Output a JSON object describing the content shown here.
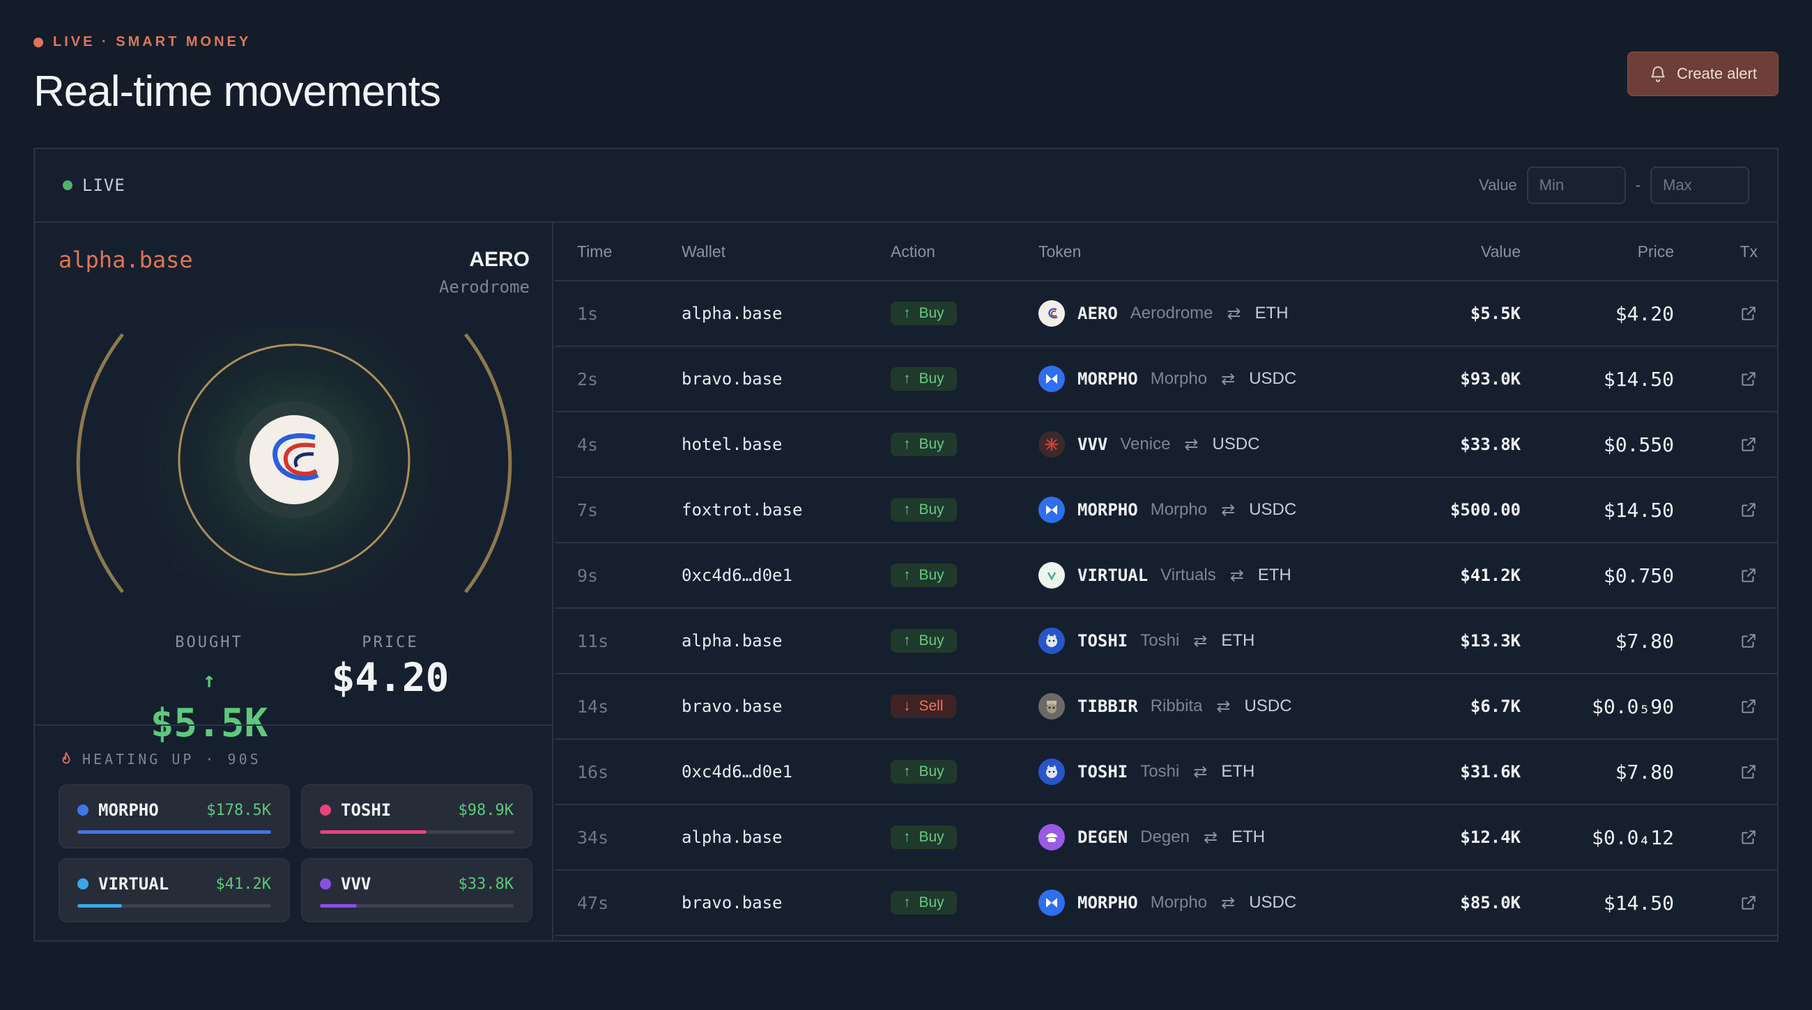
{
  "header": {
    "eyebrow": "LIVE · SMART MONEY",
    "title": "Real-time movements",
    "create_alert_label": "Create alert"
  },
  "toolbar": {
    "live_label": "LIVE",
    "value_label": "Value",
    "min_placeholder": "Min",
    "max_placeholder": "Max",
    "range_separator": "-"
  },
  "focus": {
    "wallet": "alpha.base",
    "token_symbol": "AERO",
    "token_name": "Aerodrome",
    "bought_label": "BOUGHT",
    "bought_value": "$5.5K",
    "price_label": "PRICE",
    "price_value": "$4.20"
  },
  "heating": {
    "title": "HEATING UP · 90S",
    "items": [
      {
        "symbol": "MORPHO",
        "amount": "$178.5K",
        "color": "#3d78e6",
        "level": 1.0
      },
      {
        "symbol": "TOSHI",
        "amount": "$98.9K",
        "color": "#e8437b",
        "level": 0.55
      },
      {
        "symbol": "VIRTUAL",
        "amount": "$41.2K",
        "color": "#3aa7e8",
        "level": 0.23
      },
      {
        "symbol": "VVV",
        "amount": "$33.8K",
        "color": "#8a4ee0",
        "level": 0.19
      }
    ]
  },
  "table": {
    "headers": {
      "time": "Time",
      "wallet": "Wallet",
      "action": "Action",
      "token": "Token",
      "value": "Value",
      "price": "Price",
      "tx": "Tx"
    },
    "rows": [
      {
        "time": "1s",
        "wallet": "alpha.base",
        "action": "Buy",
        "symbol": "AERO",
        "name": "Aerodrome",
        "pair": "ETH",
        "value": "$5.5K",
        "price": "$4.20",
        "icon": "aero"
      },
      {
        "time": "2s",
        "wallet": "bravo.base",
        "action": "Buy",
        "symbol": "MORPHO",
        "name": "Morpho",
        "pair": "USDC",
        "value": "$93.0K",
        "price": "$14.50",
        "icon": "morpho"
      },
      {
        "time": "4s",
        "wallet": "hotel.base",
        "action": "Buy",
        "symbol": "VVV",
        "name": "Venice",
        "pair": "USDC",
        "value": "$33.8K",
        "price": "$0.550",
        "icon": "vvv"
      },
      {
        "time": "7s",
        "wallet": "foxtrot.base",
        "action": "Buy",
        "symbol": "MORPHO",
        "name": "Morpho",
        "pair": "USDC",
        "value": "$500.00",
        "price": "$14.50",
        "icon": "morpho"
      },
      {
        "time": "9s",
        "wallet": "0xc4d6…d0e1",
        "action": "Buy",
        "symbol": "VIRTUAL",
        "name": "Virtuals",
        "pair": "ETH",
        "value": "$41.2K",
        "price": "$0.750",
        "icon": "virtual"
      },
      {
        "time": "11s",
        "wallet": "alpha.base",
        "action": "Buy",
        "symbol": "TOSHI",
        "name": "Toshi",
        "pair": "ETH",
        "value": "$13.3K",
        "price": "$7.80",
        "icon": "toshi"
      },
      {
        "time": "14s",
        "wallet": "bravo.base",
        "action": "Sell",
        "symbol": "TIBBIR",
        "name": "Ribbita",
        "pair": "USDC",
        "value": "$6.7K",
        "price": "$0.0₅90",
        "icon": "tibbir"
      },
      {
        "time": "16s",
        "wallet": "0xc4d6…d0e1",
        "action": "Buy",
        "symbol": "TOSHI",
        "name": "Toshi",
        "pair": "ETH",
        "value": "$31.6K",
        "price": "$7.80",
        "icon": "toshi"
      },
      {
        "time": "34s",
        "wallet": "alpha.base",
        "action": "Buy",
        "symbol": "DEGEN",
        "name": "Degen",
        "pair": "ETH",
        "value": "$12.4K",
        "price": "$0.0₄12",
        "icon": "degen"
      },
      {
        "time": "47s",
        "wallet": "bravo.base",
        "action": "Buy",
        "symbol": "MORPHO",
        "name": "Morpho",
        "pair": "USDC",
        "value": "$85.0K",
        "price": "$14.50",
        "icon": "morpho"
      }
    ]
  }
}
